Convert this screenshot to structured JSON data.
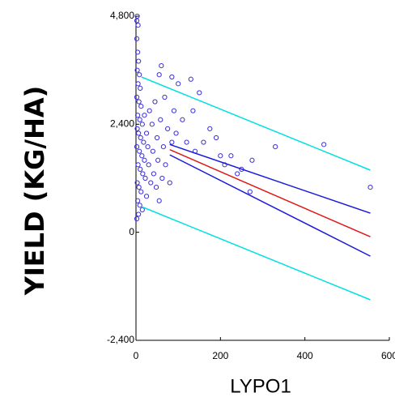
{
  "chart_data": {
    "type": "scatter",
    "x_label": "LYPO1",
    "y_label": "YIELD (KG/HA)",
    "xlim": [
      0,
      600
    ],
    "ylim": [
      -2400,
      4800
    ],
    "xticks": [
      0,
      200,
      400,
      600
    ],
    "yticks": [
      {
        "value": -2400,
        "label": "-2,400"
      },
      0,
      {
        "value": 2400,
        "label": "2,400"
      },
      {
        "value": 4800,
        "label": "4,800"
      }
    ],
    "series": [
      {
        "mode": "markers",
        "color": "#3a2ee0",
        "x": [
          2,
          3,
          5,
          2,
          4,
          6,
          3,
          8,
          5,
          10,
          2,
          7,
          12,
          4,
          9,
          15,
          3,
          6,
          11,
          18,
          2,
          8,
          14,
          20,
          5,
          10,
          16,
          22,
          3,
          7,
          12,
          25,
          4,
          9,
          15,
          6,
          2,
          20,
          25,
          28,
          30,
          32,
          35,
          38,
          40,
          42,
          45,
          48,
          50,
          52,
          55,
          58,
          62,
          65,
          68,
          70,
          75,
          80,
          85,
          90,
          95,
          100,
          110,
          120,
          130,
          135,
          140,
          150,
          160,
          175,
          190,
          200,
          210,
          225,
          240,
          250,
          270,
          275,
          330,
          445,
          555,
          55,
          60,
          85
        ],
        "values": [
          4700,
          4800,
          4600,
          4300,
          4000,
          3800,
          3600,
          3500,
          3300,
          3200,
          3000,
          2900,
          2800,
          2600,
          2500,
          2400,
          2300,
          2200,
          2100,
          2000,
          1900,
          1800,
          1700,
          1600,
          1500,
          1400,
          1300,
          1200,
          1100,
          1000,
          900,
          800,
          700,
          600,
          500,
          400,
          300,
          2600,
          2200,
          1900,
          1500,
          2700,
          1100,
          2400,
          1800,
          1300,
          2900,
          1000,
          2100,
          1600,
          700,
          2500,
          1200,
          1900,
          3000,
          1500,
          2300,
          1100,
          2000,
          2700,
          2200,
          3300,
          2500,
          2000,
          3400,
          2700,
          1800,
          3100,
          2000,
          2300,
          2100,
          1700,
          1500,
          1700,
          1300,
          1400,
          900,
          1600,
          1900,
          1950,
          1000,
          3500,
          3700,
          3450
        ]
      },
      {
        "mode": "line",
        "color": "#00e0e0",
        "x": [
          13,
          555
        ],
        "values": [
          3450,
          1380
        ]
      },
      {
        "mode": "line",
        "color": "#00e0e0",
        "x": [
          13,
          555
        ],
        "values": [
          570,
          -1500
        ]
      },
      {
        "mode": "line",
        "color": "#1a1ad8",
        "x": [
          80,
          555
        ],
        "values": [
          1950,
          425
        ]
      },
      {
        "mode": "line",
        "color": "#1a1ad8",
        "x": [
          80,
          555
        ],
        "values": [
          1720,
          -530
        ]
      },
      {
        "mode": "line",
        "color": "#e01818",
        "x": [
          80,
          555
        ],
        "values": [
          1835,
          -100
        ]
      }
    ]
  }
}
